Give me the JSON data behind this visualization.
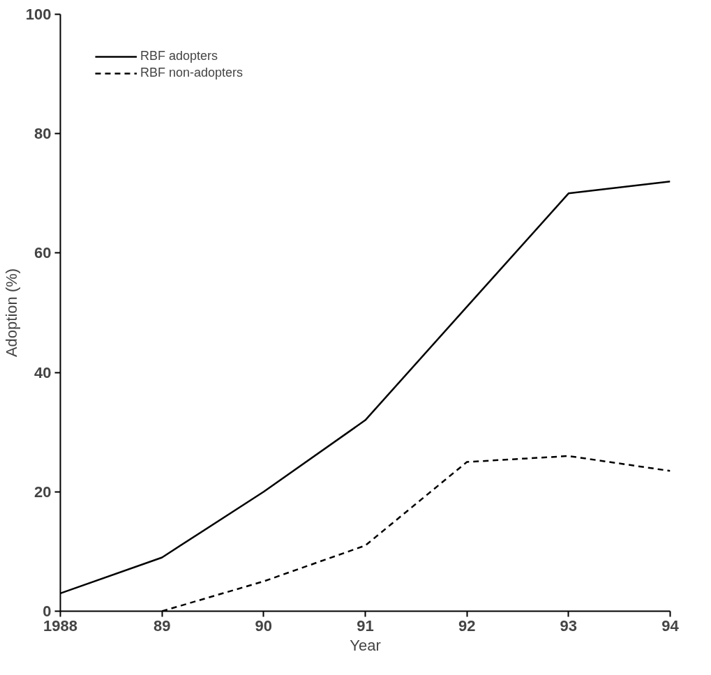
{
  "chart_data": {
    "type": "line",
    "xlabel": "Year",
    "ylabel": "Adoption (%)",
    "x": [
      1988,
      1989,
      1990,
      1991,
      1992,
      1993,
      1994
    ],
    "series": [
      {
        "name": "RBF adopters",
        "color": "#000000",
        "line_style": "solid",
        "values": [
          3,
          9,
          20,
          32,
          51,
          70,
          72
        ]
      },
      {
        "name": "RBF non-adopters",
        "color": "#000000",
        "line_style": "dashed",
        "x": [
          1989,
          1990,
          1991,
          1992,
          1993,
          1994
        ],
        "values": [
          0,
          5,
          11,
          25,
          26,
          23.5
        ]
      }
    ],
    "xlim": [
      1988,
      1994
    ],
    "ylim": [
      0,
      100
    ],
    "xticks": [
      1988,
      {
        "value": 1989,
        "label": "89"
      },
      {
        "value": 1990,
        "label": "90"
      },
      {
        "value": 1991,
        "label": "91"
      },
      {
        "value": 1992,
        "label": "92"
      },
      {
        "value": 1993,
        "label": "93"
      },
      {
        "value": 1994,
        "label": "94"
      }
    ],
    "yticks": [
      0,
      20,
      40,
      60,
      80,
      100
    ],
    "grid": false,
    "legend": "top left",
    "marker": "none"
  }
}
